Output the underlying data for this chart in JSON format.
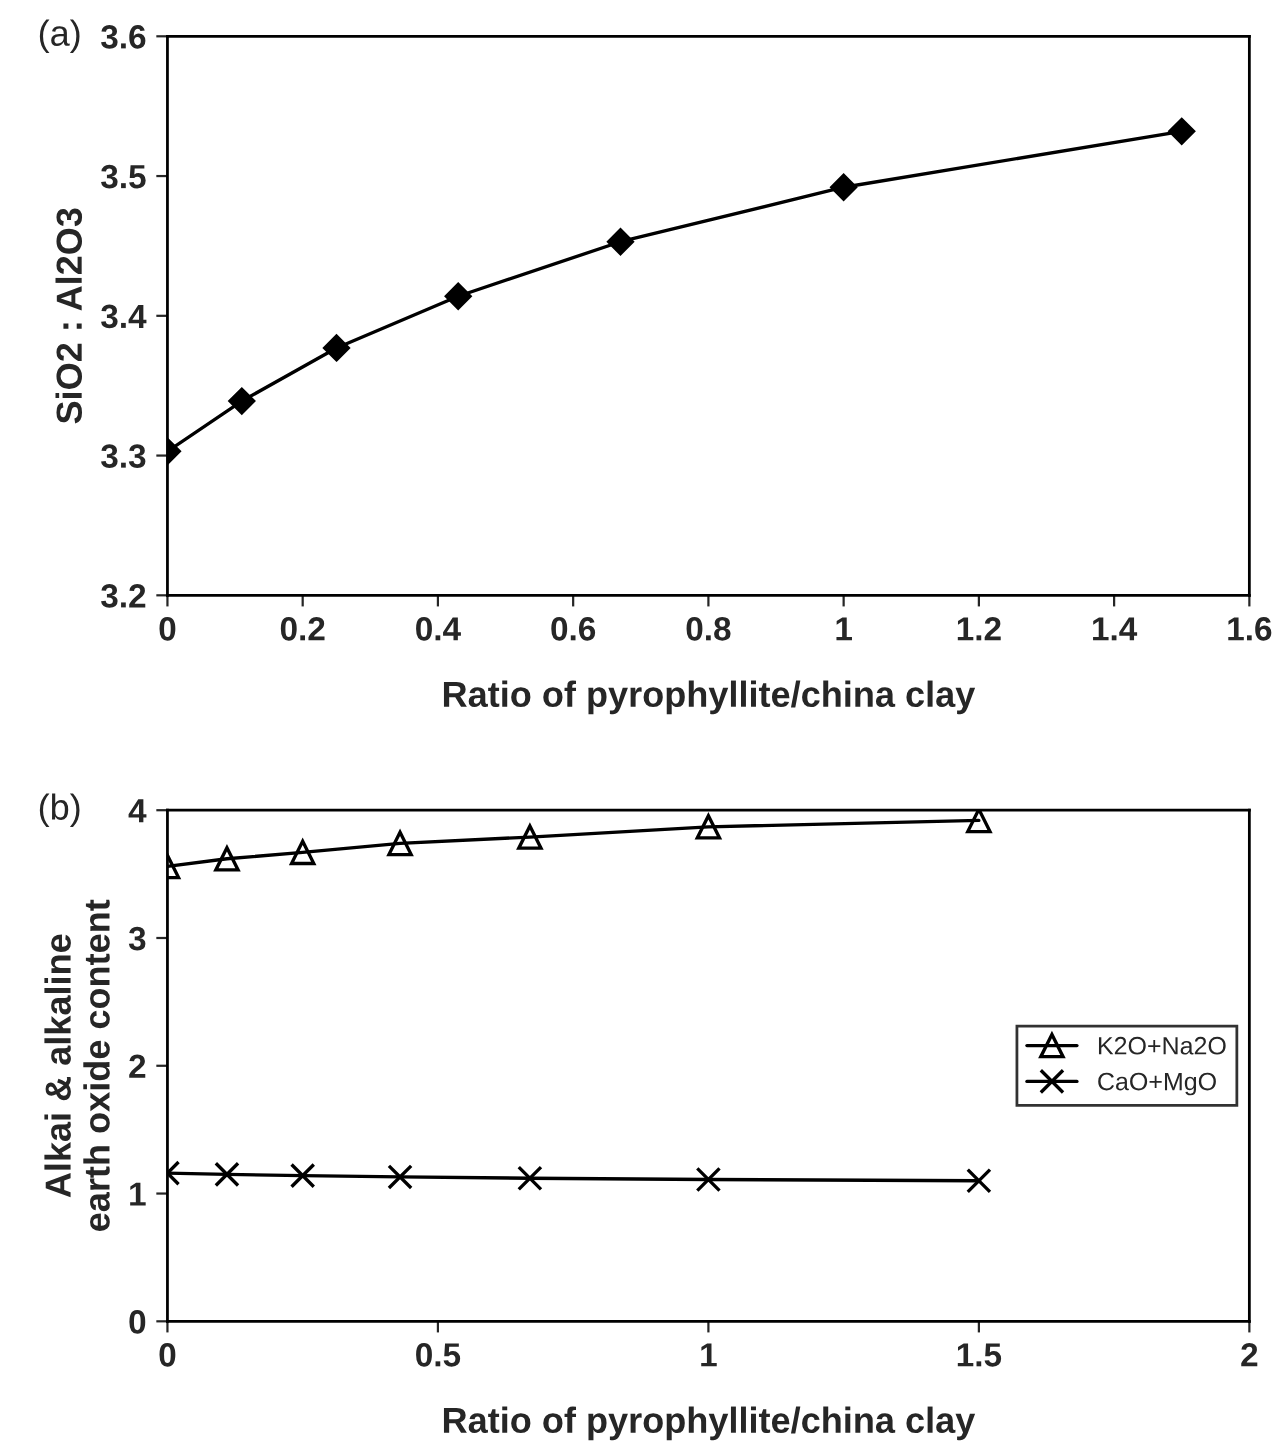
{
  "chart_data": [
    {
      "type": "line",
      "annotations": [
        "(a)"
      ],
      "xlabel": "Ratio of pyrophyllite/china clay",
      "ylabel": "SiO2 : Al2O3",
      "xlim": [
        0,
        1.6
      ],
      "xticks": [
        0,
        0.2,
        0.4,
        0.6,
        0.8,
        1,
        1.2,
        1.4,
        1.6
      ],
      "ylim": [
        3.2,
        3.6
      ],
      "yticks": [
        3.2,
        3.3,
        3.4,
        3.5,
        3.6
      ],
      "grid": false,
      "legend": false,
      "series": [
        {
          "color": "#000000",
          "marker": "diamond",
          "x": [
            0,
            0.11,
            0.25,
            0.43,
            0.67,
            1.0,
            1.5
          ],
          "values": [
            3.303,
            3.339,
            3.377,
            3.414,
            3.453,
            3.492,
            3.532
          ]
        }
      ]
    },
    {
      "type": "line",
      "annotations": [
        "(b)"
      ],
      "xlabel": "Ratio of pyrophyllite/china clay",
      "ylabel": "Alkai & alkaline\nearth oxide content",
      "xlim": [
        0,
        2
      ],
      "xticks": [
        0,
        0.5,
        1,
        1.5,
        2
      ],
      "ylim": [
        0,
        4
      ],
      "yticks": [
        0,
        1,
        2,
        3,
        4
      ],
      "grid": false,
      "legend": "right",
      "series": [
        {
          "name": "K2O+Na2O",
          "color": "#000000",
          "marker": "triangle",
          "x": [
            0,
            0.11,
            0.25,
            0.43,
            0.67,
            1.0,
            1.5
          ],
          "values": [
            3.56,
            3.62,
            3.67,
            3.74,
            3.79,
            3.87,
            3.92
          ]
        },
        {
          "name": "CaO+MgO",
          "color": "#000000",
          "marker": "cross",
          "x": [
            0,
            0.11,
            0.25,
            0.43,
            0.67,
            1.0,
            1.5
          ],
          "values": [
            1.16,
            1.15,
            1.14,
            1.13,
            1.12,
            1.11,
            1.1
          ]
        }
      ]
    }
  ]
}
